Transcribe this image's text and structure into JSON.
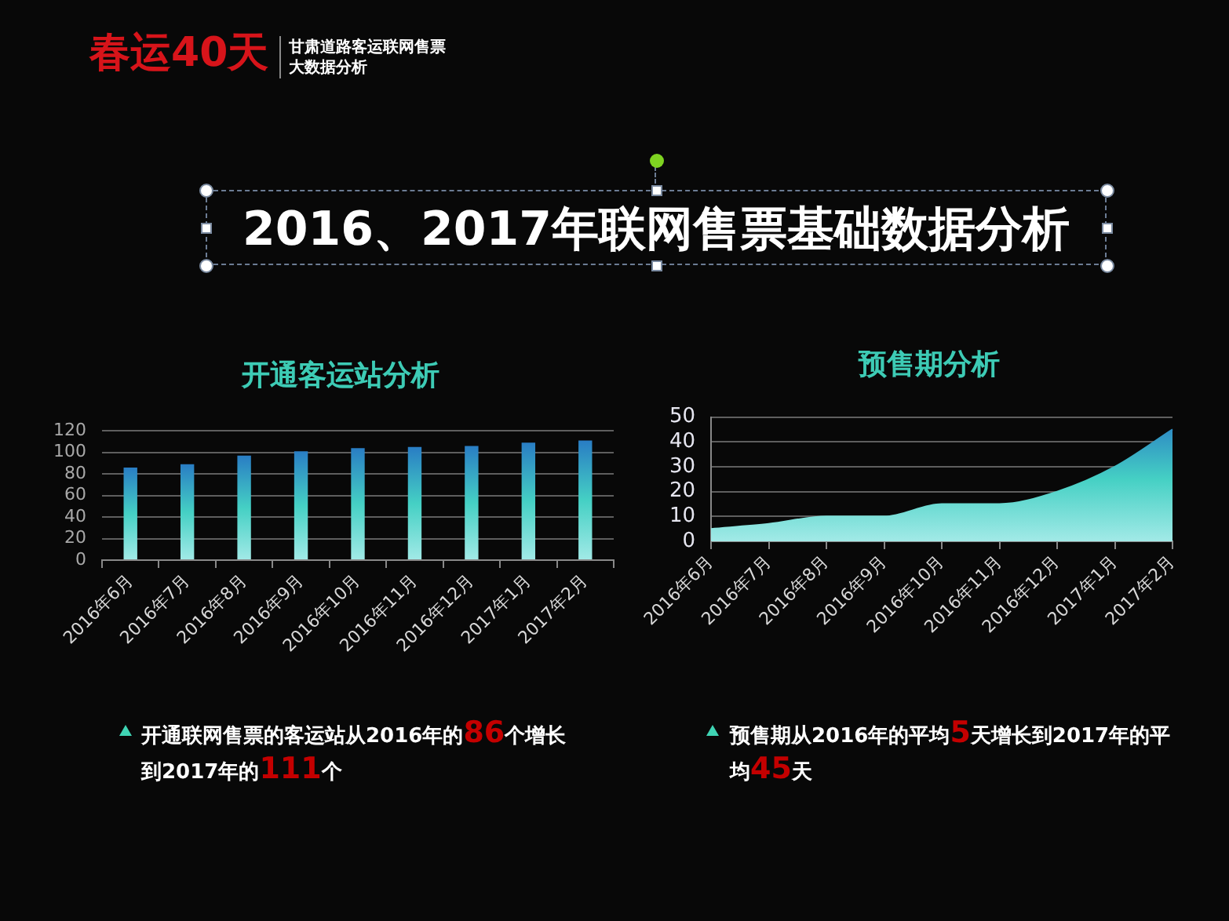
{
  "chart_data": [
    {
      "type": "other",
      "title": "2016、2017年联网售票基础数据分析",
      "subtitle": "甘肃道路客运联网售票大数据分析",
      "annotations": [
        "春运40天"
      ]
    },
    {
      "type": "bar",
      "title": "开通客运站分析",
      "categories": [
        "2016年6月",
        "2016年7月",
        "2016年8月",
        "2016年9月",
        "2016年10月",
        "2016年11月",
        "2016年12月",
        "2017年1月",
        "2017年2月"
      ],
      "values": [
        86,
        89,
        97,
        101,
        104,
        105,
        106,
        109,
        111
      ],
      "color": "#45d0c4",
      "ylim": [
        0,
        120
      ],
      "yticks": [
        0,
        20,
        40,
        60,
        80,
        100,
        120
      ],
      "grid": "y",
      "annotations": [
        "开通联网售票的客运站从2016年的",
        "86",
        "个增长",
        "到2017年的",
        "111",
        "个"
      ]
    },
    {
      "type": "area",
      "title": "预售期分析",
      "categories": [
        "2016年6月",
        "2016年7月",
        "2016年8月",
        "2016年9月",
        "2016年10月",
        "2016年11月",
        "2016年12月",
        "2017年1月",
        "2017年2月"
      ],
      "values": [
        5,
        7,
        10,
        10,
        15,
        15,
        20,
        30,
        45
      ],
      "color": "#45d0c4",
      "ylim": [
        0,
        50
      ],
      "yticks": [
        0,
        10,
        20,
        30,
        40,
        50
      ],
      "grid": "y",
      "annotations": [
        "预售期从2016年的平均",
        "5",
        "天增长到2017年的平",
        "均",
        "45",
        "天"
      ]
    }
  ]
}
